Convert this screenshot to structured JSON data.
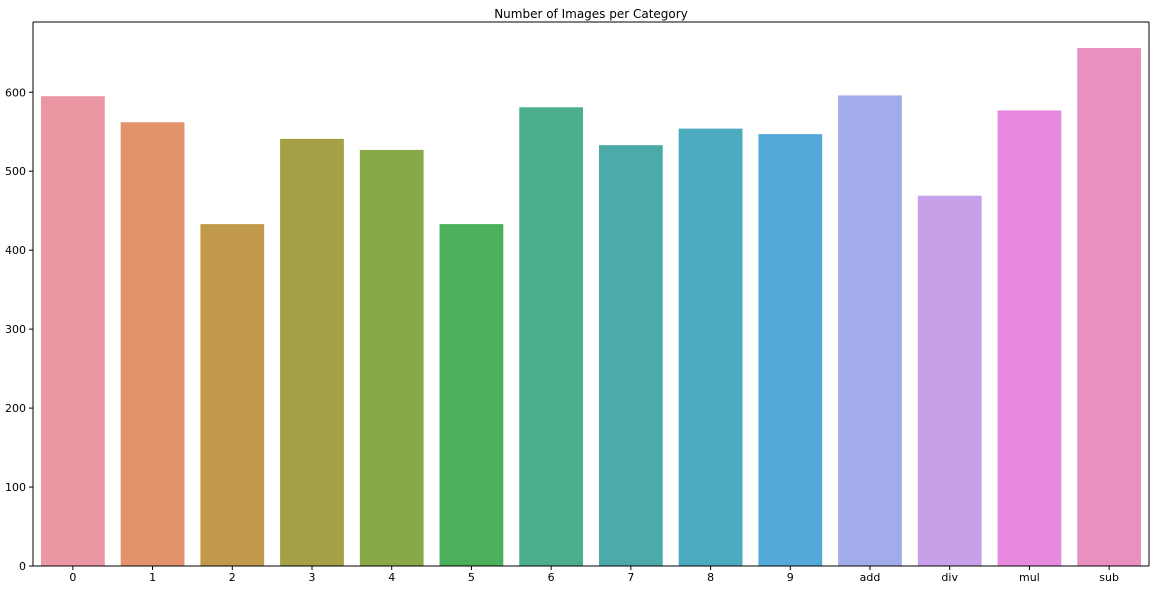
{
  "chart_data": {
    "type": "bar",
    "title": "Number of Images per Category",
    "xlabel": "",
    "ylabel": "",
    "categories": [
      "0",
      "1",
      "2",
      "3",
      "4",
      "5",
      "6",
      "7",
      "8",
      "9",
      "add",
      "div",
      "mul",
      "sub"
    ],
    "values": [
      595,
      562,
      433,
      541,
      527,
      433,
      581,
      533,
      554,
      547,
      596,
      469,
      577,
      656
    ],
    "colors": [
      "#ea96a3",
      "#e3936b",
      "#c09a4a",
      "#a59f45",
      "#89a847",
      "#4baf5b",
      "#4baf8d",
      "#4caaa9",
      "#4dabbf",
      "#53aad9",
      "#a3acea",
      "#c6a0e8",
      "#e889e0",
      "#e990c1"
    ],
    "ylim": [
      0,
      689
    ],
    "yticks": [
      0,
      100,
      200,
      300,
      400,
      500,
      600
    ],
    "grid": false
  }
}
